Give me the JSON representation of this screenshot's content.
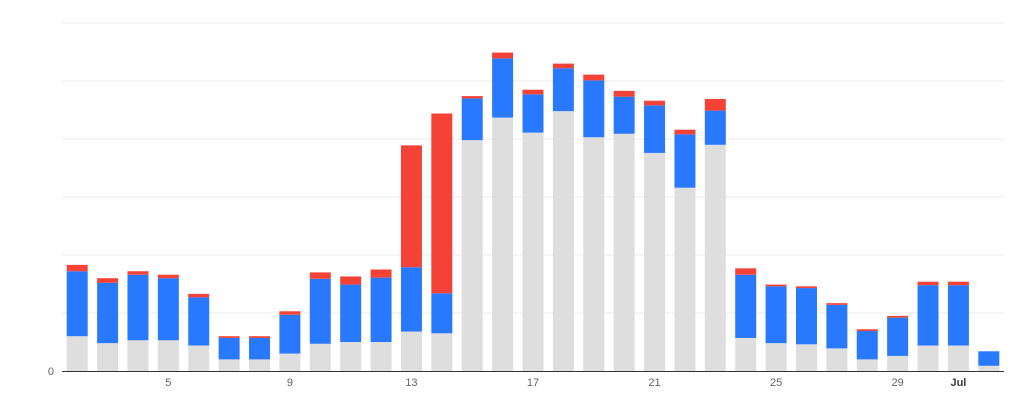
{
  "chart_data": {
    "type": "bar",
    "stacked": true,
    "grid": true,
    "legend": "none",
    "y_axis": {
      "ylim": [
        0,
        600
      ],
      "gridline_step": 100,
      "tick_labels": [
        {
          "value": 0,
          "label": "0"
        }
      ]
    },
    "x_tick_labels": [
      {
        "index": 3,
        "label": "5",
        "bold": false
      },
      {
        "index": 7,
        "label": "9",
        "bold": false
      },
      {
        "index": 11,
        "label": "13",
        "bold": false
      },
      {
        "index": 15,
        "label": "17",
        "bold": false
      },
      {
        "index": 19,
        "label": "21",
        "bold": false
      },
      {
        "index": 23,
        "label": "25",
        "bold": false
      },
      {
        "index": 27,
        "label": "29",
        "bold": false
      },
      {
        "index": 29,
        "label": "Jul",
        "bold": true
      }
    ],
    "categories": [
      "Jun 2",
      "Jun 3",
      "Jun 4",
      "Jun 5",
      "Jun 6",
      "Jun 7",
      "Jun 8",
      "Jun 9",
      "Jun 10",
      "Jun 11",
      "Jun 12",
      "Jun 13",
      "Jun 14",
      "Jun 15",
      "Jun 16",
      "Jun 17",
      "Jun 18",
      "Jun 19",
      "Jun 20",
      "Jun 21",
      "Jun 22",
      "Jun 23",
      "Jun 24",
      "Jun 25",
      "Jun 26",
      "Jun 27",
      "Jun 28",
      "Jun 29",
      "Jun 30",
      "Jul 1",
      "Jul 2"
    ],
    "series": [
      {
        "color": "#dedede",
        "values": [
          60,
          48,
          53,
          53,
          44,
          20,
          20,
          30,
          47,
          50,
          50,
          68,
          65,
          398,
          437,
          411,
          448,
          403,
          409,
          376,
          316,
          390,
          57,
          48,
          46,
          39,
          20,
          26,
          44,
          44,
          9
        ]
      },
      {
        "color": "#2979ff",
        "values": [
          112,
          104,
          113,
          107,
          83,
          37,
          37,
          67,
          112,
          99,
          111,
          111,
          69,
          72,
          102,
          66,
          74,
          98,
          64,
          82,
          92,
          59,
          109,
          98,
          97,
          75,
          49,
          66,
          104,
          104,
          25
        ]
      },
      {
        "color": "#f44336",
        "values": [
          11,
          8,
          6,
          6,
          6,
          3,
          3,
          6,
          11,
          14,
          14,
          210,
          310,
          4,
          10,
          8,
          8,
          10,
          10,
          8,
          8,
          20,
          11,
          3,
          3,
          3,
          3,
          3,
          6,
          6,
          0
        ]
      }
    ]
  }
}
